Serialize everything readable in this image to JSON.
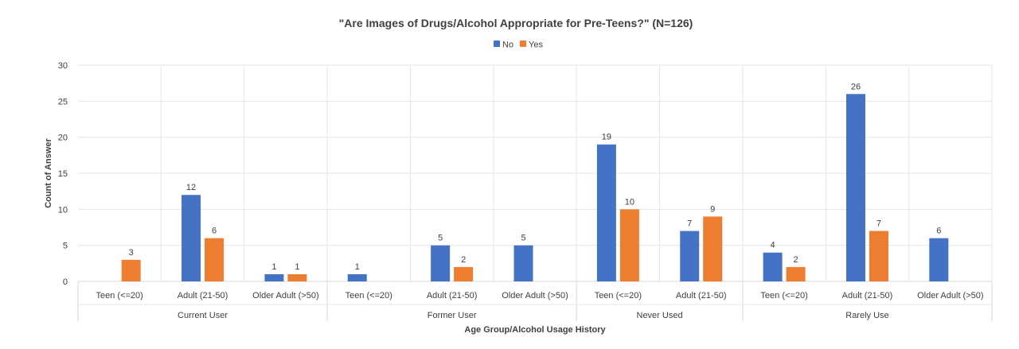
{
  "chart_data": {
    "type": "bar",
    "title": "\"Are Images of Drugs/Alcohol Appropriate for Pre-Teens?\" (N=126)",
    "xlabel": "Age Group/Alcohol Usage History",
    "ylabel": "Count of Answer",
    "ylim": [
      0,
      30
    ],
    "yticks": [
      0,
      5,
      10,
      15,
      20,
      25,
      30
    ],
    "grid": true,
    "legend_position": "top-center",
    "groups": [
      {
        "name": "Current User",
        "categories": [
          "Teen (<=20)",
          "Adult (21-50)",
          "Older Adult (>50)"
        ]
      },
      {
        "name": "Former User",
        "categories": [
          "Teen (<=20)",
          "Adult (21-50)",
          "Older Adult (>50)"
        ]
      },
      {
        "name": "Never Used",
        "categories": [
          "Teen (<=20)",
          "Adult (21-50)"
        ]
      },
      {
        "name": "Rarely Use",
        "categories": [
          "Teen (<=20)",
          "Adult (21-50)",
          "Older Adult (>50)"
        ]
      }
    ],
    "categories": [
      "Teen (<=20)",
      "Adult (21-50)",
      "Older Adult (>50)",
      "Teen (<=20)",
      "Adult (21-50)",
      "Older Adult (>50)",
      "Teen (<=20)",
      "Adult (21-50)",
      "Teen (<=20)",
      "Adult (21-50)",
      "Older Adult (>50)"
    ],
    "series": [
      {
        "name": "No",
        "color": "#4472C4",
        "values": [
          null,
          12,
          1,
          1,
          5,
          5,
          19,
          7,
          4,
          26,
          6
        ]
      },
      {
        "name": "Yes",
        "color": "#ED7D31",
        "values": [
          3,
          6,
          1,
          null,
          2,
          null,
          10,
          9,
          2,
          7,
          null
        ]
      }
    ]
  }
}
